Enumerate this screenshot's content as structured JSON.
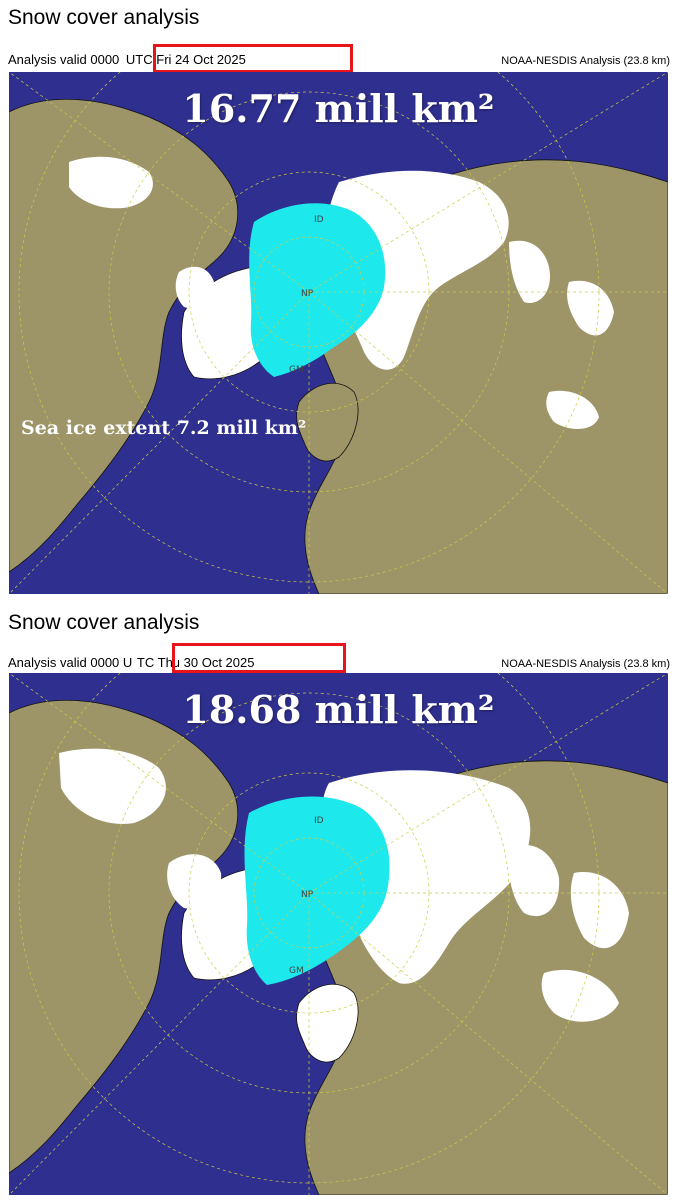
{
  "panels": [
    {
      "title": "Snow cover analysis",
      "valid_prefix": "Analysis valid 0000",
      "valid_highlight": "UTC  Fri 24 Oct 2025",
      "source": "NOAA-NESDIS Analysis (23.8 km)",
      "snow_extent": "16.77 mill km²",
      "sea_ice_note": "Sea ice extent 7.2 mill km²",
      "map_labels": {
        "id": "ID",
        "np": "NP",
        "gm": "GM"
      }
    },
    {
      "title": "Snow cover analysis",
      "valid_prefix": "Analysis valid 0000 U",
      "valid_highlight": "TC  Thu 30 Oct 2025",
      "source": "NOAA-NESDIS Analysis (23.8 km)",
      "snow_extent": "18.68 mill km²",
      "map_labels": {
        "id": "ID",
        "np": "NP",
        "gm": "GM"
      }
    }
  ],
  "colors": {
    "ocean": "#2f2f8f",
    "land": "#9d9468",
    "snow": "#ffffff",
    "sea_ice": "#1de8ec",
    "highlight_box": "#e8141a",
    "graticule": "#cccc44"
  }
}
